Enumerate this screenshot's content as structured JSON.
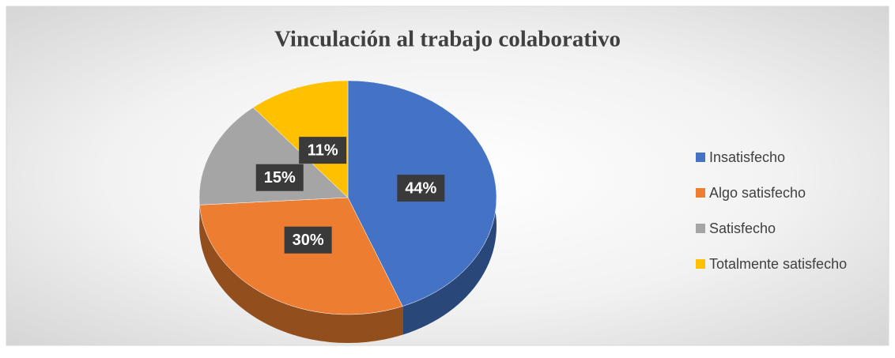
{
  "chart_data": {
    "type": "pie",
    "title": "Vinculación al trabajo colaborativo",
    "categories": [
      "Insatisfecho",
      "Algo satisfecho",
      "Satisfecho",
      "Totalmente satisfecho"
    ],
    "values": [
      44,
      30,
      15,
      11
    ],
    "value_labels": [
      "44%",
      "30%",
      "15%",
      "11%"
    ],
    "colors": [
      "#4472c4",
      "#ed7d31",
      "#a5a5a5",
      "#ffc000"
    ],
    "legend": "right"
  }
}
